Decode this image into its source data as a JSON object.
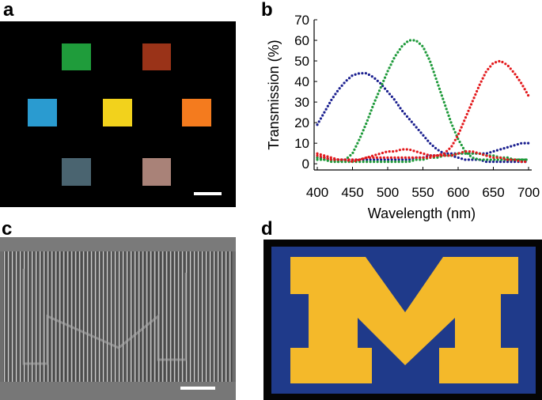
{
  "panel_labels": [
    "a",
    "b",
    "c",
    "d"
  ],
  "chart_data": {
    "type": "line",
    "x_label": "Wavelength (nm)",
    "y_label": "Transmission (%)",
    "x": [
      400,
      410,
      420,
      430,
      440,
      450,
      460,
      470,
      480,
      490,
      500,
      510,
      520,
      530,
      540,
      550,
      560,
      570,
      580,
      590,
      600,
      610,
      620,
      630,
      640,
      650,
      660,
      670,
      680,
      690,
      700
    ],
    "series": [
      {
        "color": "#1a1f8f",
        "values": [
          19,
          25,
          31,
          36,
          40,
          43,
          44,
          44,
          42,
          39,
          35,
          31,
          26,
          22,
          18,
          14,
          10,
          7,
          5,
          4,
          3,
          2,
          2,
          2,
          1,
          1,
          1,
          1,
          1,
          1,
          1
        ]
      },
      {
        "color": "#1a1f8f",
        "values": [
          3,
          3,
          2,
          2,
          2,
          2,
          2,
          2,
          2,
          2,
          2,
          2,
          2,
          2,
          3,
          3,
          4,
          4,
          5,
          5,
          5,
          5,
          5,
          5,
          5,
          6,
          7,
          8,
          9,
          10,
          10
        ]
      },
      {
        "color": "#1e9a3a",
        "values": [
          3,
          2,
          2,
          1,
          2,
          5,
          12,
          20,
          29,
          37,
          45,
          52,
          57,
          60,
          60,
          57,
          50,
          40,
          30,
          20,
          12,
          6,
          3,
          2,
          2,
          2,
          2,
          2,
          2,
          2,
          2
        ]
      },
      {
        "color": "#1e9a3a",
        "values": [
          2,
          2,
          1,
          1,
          1,
          1,
          1,
          1,
          1,
          1,
          1,
          1,
          1,
          1,
          2,
          2,
          3,
          3,
          4,
          4,
          5,
          5,
          5,
          5,
          4,
          4,
          3,
          3,
          2,
          2,
          2
        ]
      },
      {
        "color": "#e3191c",
        "values": [
          4,
          3,
          2,
          2,
          2,
          2,
          2,
          3,
          3,
          3,
          3,
          3,
          3,
          3,
          3,
          3,
          3,
          4,
          5,
          8,
          14,
          22,
          30,
          38,
          45,
          49,
          50,
          48,
          44,
          39,
          33
        ]
      },
      {
        "color": "#e3191c",
        "values": [
          5,
          4,
          3,
          2,
          2,
          1,
          2,
          3,
          4,
          5,
          6,
          6,
          7,
          7,
          6,
          5,
          4,
          4,
          4,
          4,
          5,
          6,
          6,
          5,
          4,
          3,
          3,
          2,
          2,
          1,
          1
        ]
      }
    ],
    "xlim": [
      400,
      700
    ],
    "xticks": [
      400,
      450,
      500,
      550,
      600,
      650,
      700
    ],
    "ylim": [
      -3,
      70
    ],
    "yticks": [
      0,
      10,
      20,
      30,
      40,
      50,
      60,
      70
    ],
    "grid": false
  }
}
